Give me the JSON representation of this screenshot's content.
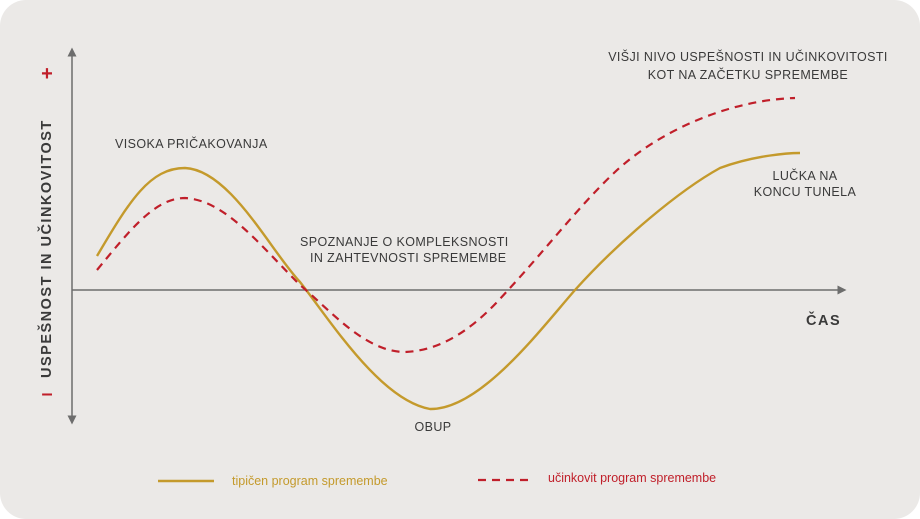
{
  "colors": {
    "typical": "#c49a2c",
    "effective": "#c01f2a",
    "axis": "#6d6d6d",
    "text": "#3a3a3a",
    "background": "#ebe9e7"
  },
  "axes": {
    "y_label": "USPEŠNOST IN UČINKOVITOST",
    "y_plus": "+",
    "y_minus": "–",
    "x_label": "ČAS"
  },
  "annotations": {
    "high_expectations": "VISOKA PRIČAKOVANJA",
    "complexity": [
      "SPOZNANJE O KOMPLEKSNOSTI",
      "IN ZAHTEVNOSTI SPREMEMBE"
    ],
    "despair": "OBUP",
    "light_tunnel": [
      "LUČKA NA",
      "KONCU TUNELA"
    ],
    "higher_level": [
      "VIŠJI NIVO USPEŠNOSTI IN UČINKOVITOSTI",
      "KOT NA ZAČETKU SPREMEMBE"
    ]
  },
  "legend": {
    "typical": "tipičen program spremembe",
    "effective": "učinkovit program spremembe"
  }
}
